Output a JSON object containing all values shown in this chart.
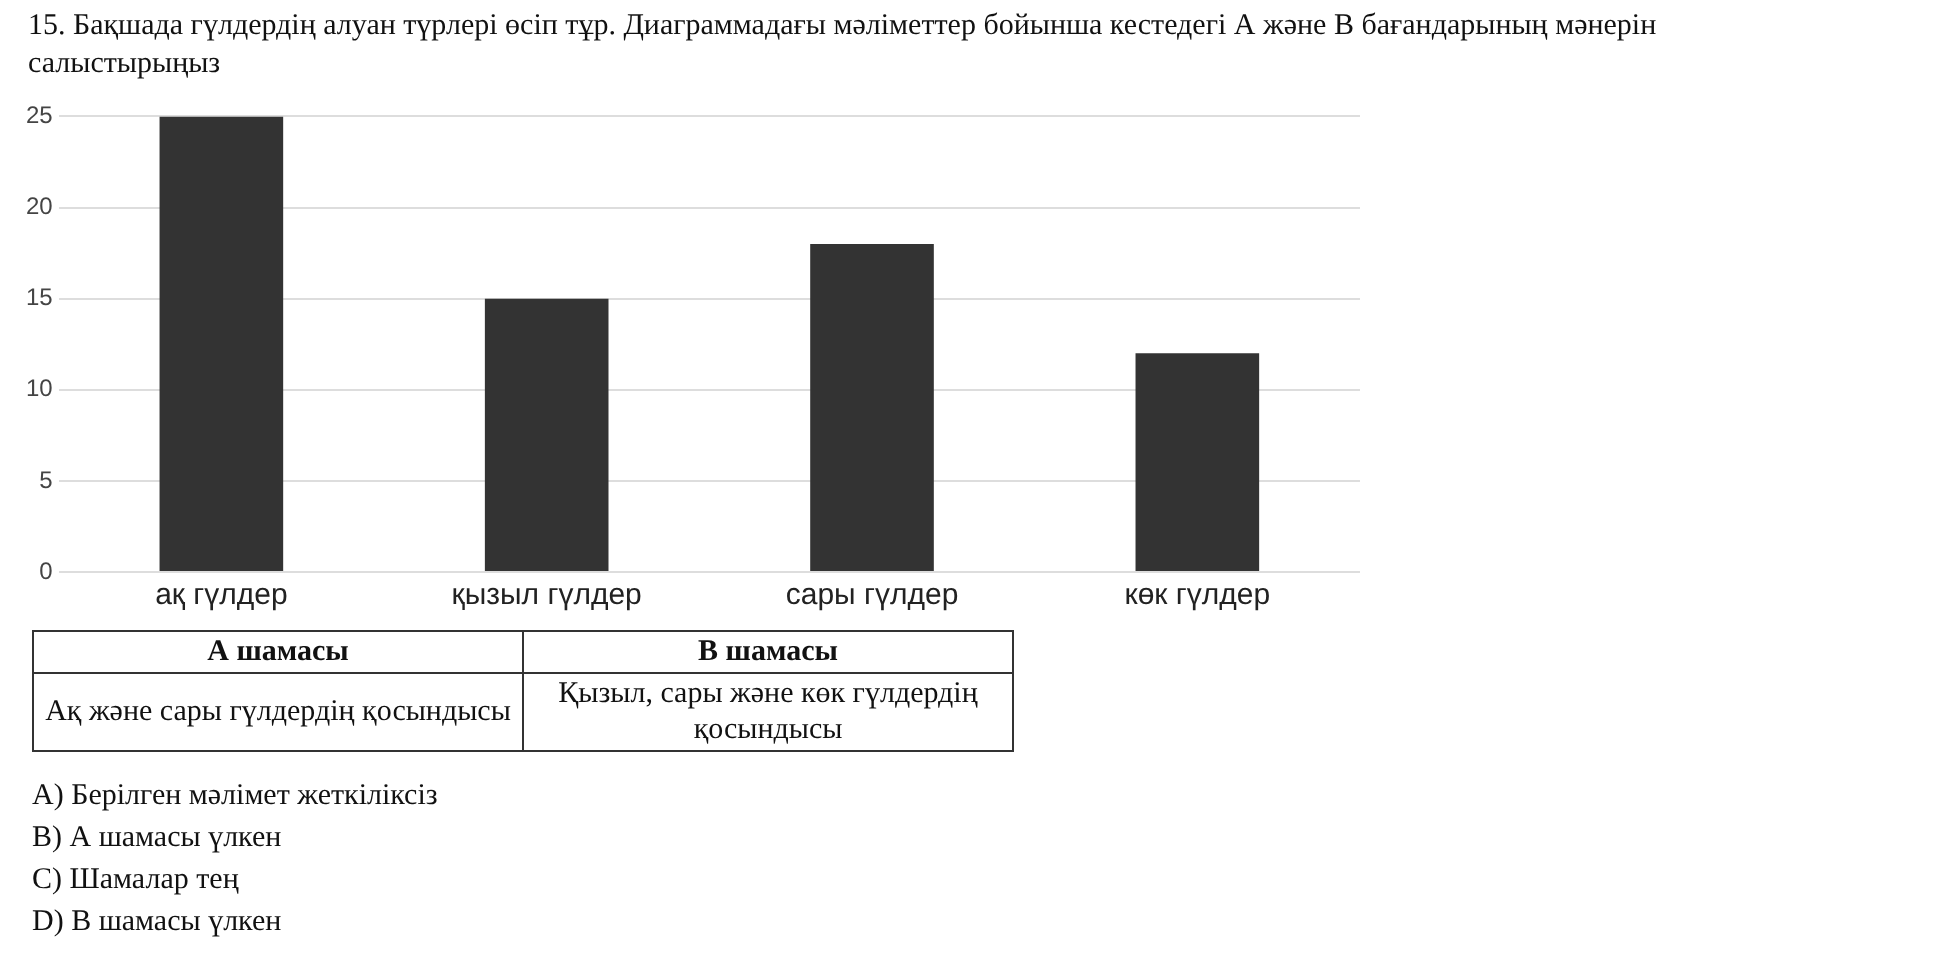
{
  "chart_data": {
    "type": "bar",
    "title": "15. Бақшада гүлдердің алуан түрлері өсіп тұр. Диаграммадағы мәліметтер бойынша кестедегі А және В бағандарының мәнерін салыстырыңыз",
    "categories": [
      "ақ гүлдер",
      "қызыл гүлдер",
      "сары гүлдер",
      "көк гүлдер"
    ],
    "values": [
      25,
      15,
      18,
      12
    ],
    "color": "#333333",
    "ylim": [
      0,
      25
    ],
    "yticks": [
      0,
      5,
      10,
      15,
      20,
      25
    ],
    "grid": "y",
    "legend": false,
    "annotations": [
      "А шамасы",
      "В шамасы",
      "Ақ және сары гүлдердің қосындысы",
      "Қызыл, сары және көк гүлдердің қосындысы",
      "А) Берілген мәлімет жеткіліксіз",
      "В) А шамасы үлкен",
      "С) Шамалар тең",
      "D) В шамасы үлкен"
    ]
  }
}
